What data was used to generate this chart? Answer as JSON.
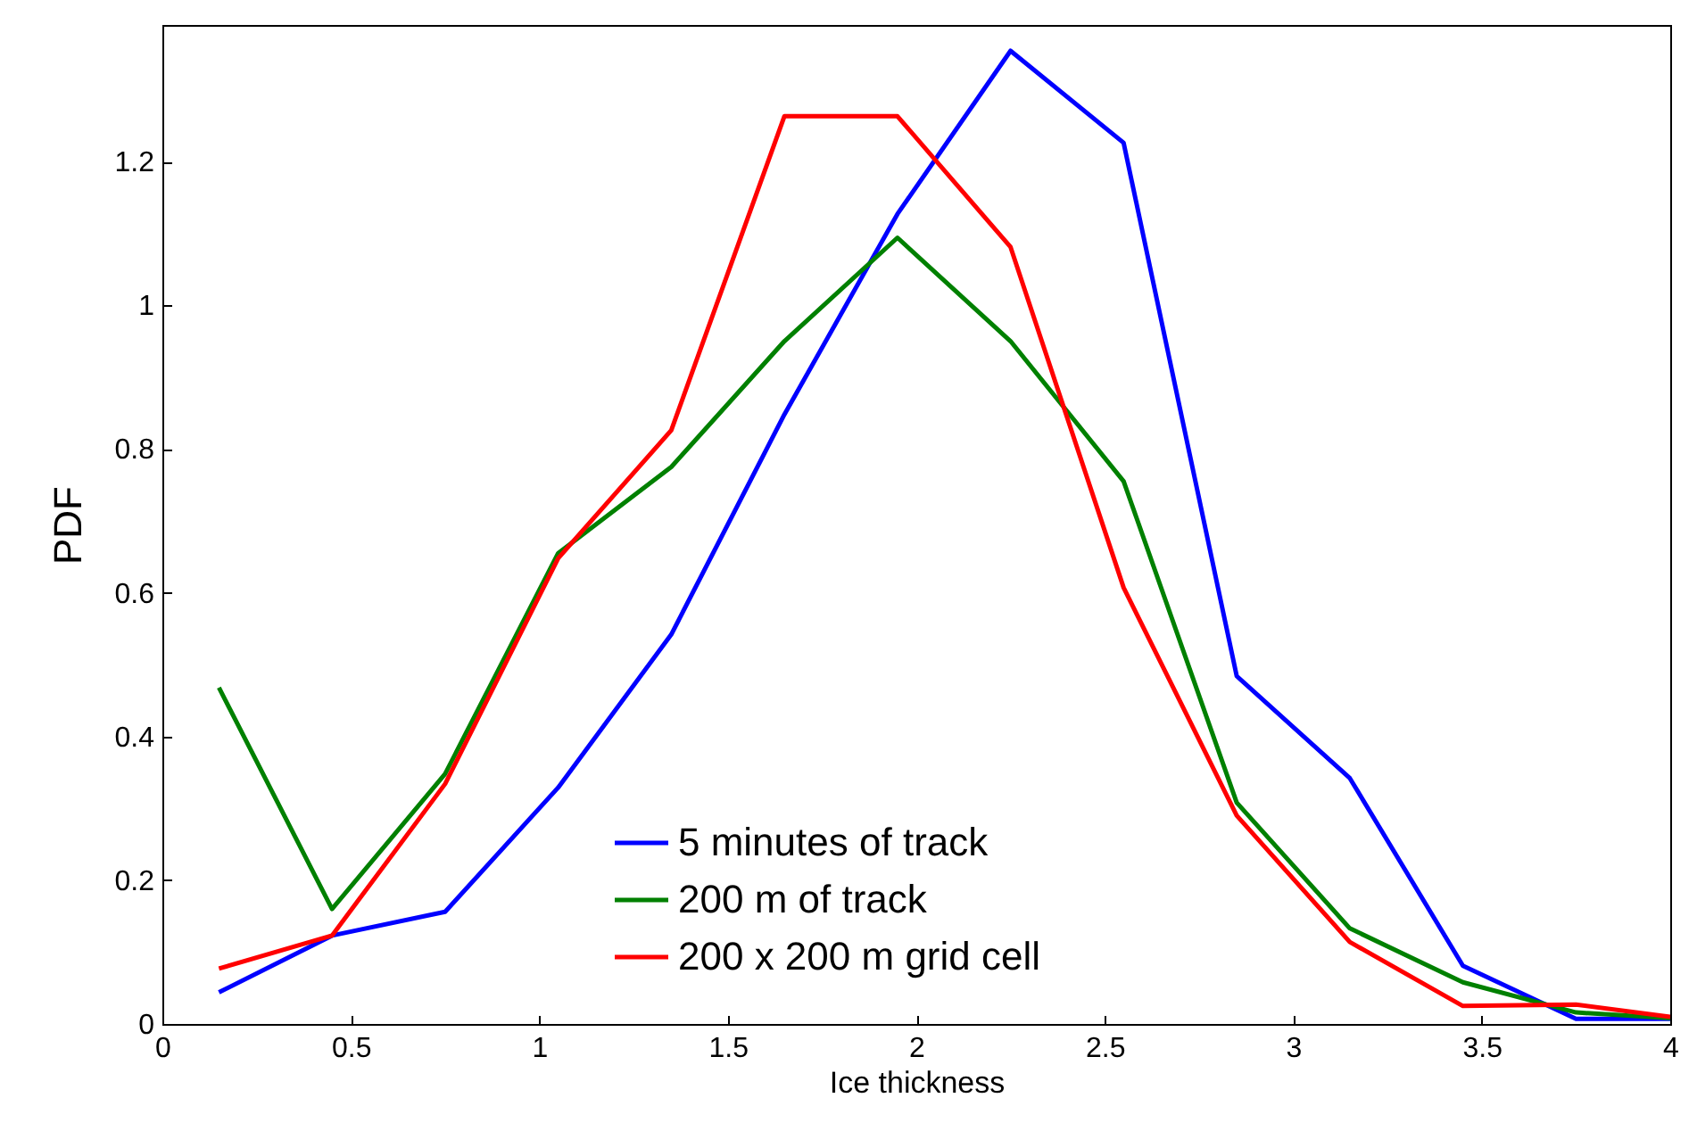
{
  "chart_data": {
    "type": "line",
    "xlabel": "Ice thickness",
    "ylabel": "PDF",
    "x": [
      0.15,
      0.45,
      0.75,
      1.05,
      1.35,
      1.65,
      1.95,
      2.25,
      2.55,
      2.85,
      3.15,
      3.45,
      3.75,
      4
    ],
    "series": [
      {
        "name": "5 minutes of track",
        "color": "#0000ff",
        "values": [
          0.044,
          0.123,
          0.156,
          0.329,
          0.542,
          0.848,
          1.127,
          1.354,
          1.226,
          0.484,
          0.342,
          0.081,
          0.007,
          0.007
        ]
      },
      {
        "name": "200 m of track",
        "color": "#008000",
        "values": [
          0.468,
          0.16,
          0.348,
          0.655,
          0.775,
          0.95,
          1.094,
          0.95,
          0.755,
          0.308,
          0.133,
          0.058,
          0.016,
          0.008
        ]
      },
      {
        "name": "200 x 200 m grid cell",
        "color": "#ff0000",
        "values": [
          0.077,
          0.123,
          0.334,
          0.648,
          0.826,
          1.263,
          1.263,
          1.081,
          0.607,
          0.29,
          0.114,
          0.025,
          0.027,
          0.01
        ]
      }
    ],
    "xlim": [
      0,
      4
    ],
    "xticks": [
      0,
      0.5,
      1,
      1.5,
      2,
      2.5,
      3,
      3.5,
      4
    ],
    "ylim": [
      0,
      1.39
    ],
    "yticks": [
      0,
      0.2,
      0.4,
      0.6,
      0.8,
      1,
      1.2
    ],
    "legend": "bottom",
    "grid": false,
    "marker": "none",
    "line_style": "solid"
  }
}
